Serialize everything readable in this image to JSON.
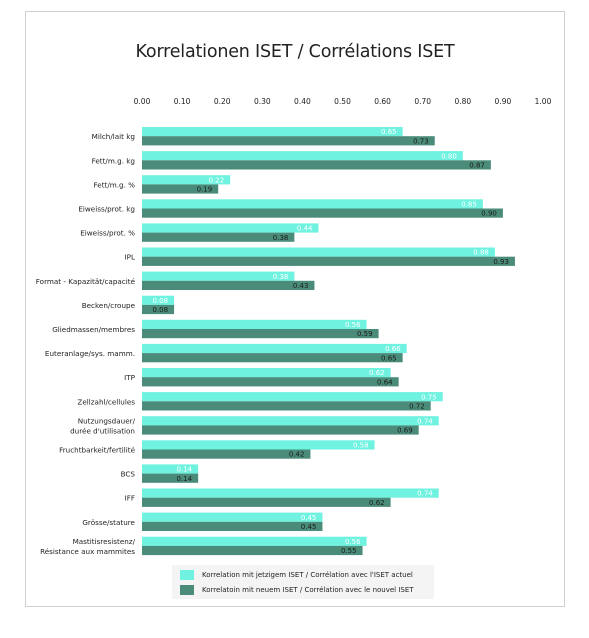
{
  "chart_data": {
    "type": "bar",
    "orientation": "horizontal",
    "title": "Korrelationen ISET / Corrélations ISET",
    "xlim": [
      0,
      1
    ],
    "xticks": [
      "0.00",
      "0.10",
      "0.20",
      "0.30",
      "0.40",
      "0.50",
      "0.60",
      "0.70",
      "0.80",
      "0.90",
      "1.00"
    ],
    "xtick_position": "top",
    "grid": false,
    "legend_position": "bottom",
    "categories": [
      [
        "Milch/lait kg"
      ],
      [
        "Fett/m.g. kg"
      ],
      [
        "Fett/m.g. %"
      ],
      [
        "Eiweiss/prot. kg"
      ],
      [
        "Eiweiss/prot. %"
      ],
      [
        "IPL"
      ],
      [
        "Format - Kapazität/capacité"
      ],
      [
        "Becken/croupe"
      ],
      [
        "Gliedmassen/membres"
      ],
      [
        "Euteranlage/sys. mamm."
      ],
      [
        "ITP"
      ],
      [
        "Zellzahl/cellules"
      ],
      [
        "Nutzungsdauer/",
        "durée d'utilisation"
      ],
      [
        "Fruchtbarkeit/fertilité"
      ],
      [
        "BCS"
      ],
      [
        "IFF"
      ],
      [
        "Grösse/stature"
      ],
      [
        "Mastitisresistenz/",
        "Résistance aux mammites"
      ]
    ],
    "series": [
      {
        "name": "Korrelation mit jetzigem ISET / Corrélation avec l'ISET actuel",
        "color": "#6ff2e0",
        "values": [
          0.65,
          0.8,
          0.22,
          0.85,
          0.44,
          0.88,
          0.38,
          0.08,
          0.56,
          0.66,
          0.62,
          0.75,
          0.74,
          0.58,
          0.14,
          0.74,
          0.45,
          0.56
        ],
        "labels": [
          "0.65",
          "0.80",
          "0.22",
          "0.85",
          "0.44",
          "0.88",
          "0.38",
          "0.08",
          "0.56",
          "0.66",
          "0.62",
          "0.75",
          "0.74",
          "0.58",
          "0.14",
          "0.74",
          "0.45",
          "0.56"
        ]
      },
      {
        "name": "Korrelatoin mit neuem ISET / Corrélation avec le nouvel ISET",
        "color": "#4a8c79",
        "values": [
          0.73,
          0.87,
          0.19,
          0.9,
          0.38,
          0.93,
          0.43,
          0.08,
          0.59,
          0.65,
          0.64,
          0.72,
          0.69,
          0.42,
          0.14,
          0.62,
          0.45,
          0.55
        ],
        "labels": [
          "0.73",
          "0.87",
          "0.19",
          "0.90",
          "0.38",
          "0.93",
          "0.43",
          "0.08",
          "0.59",
          "0.65",
          "0.64",
          "0.72",
          "0.69",
          "0.42",
          "0.14",
          "0.62",
          "0.45",
          "0.55"
        ]
      }
    ]
  }
}
